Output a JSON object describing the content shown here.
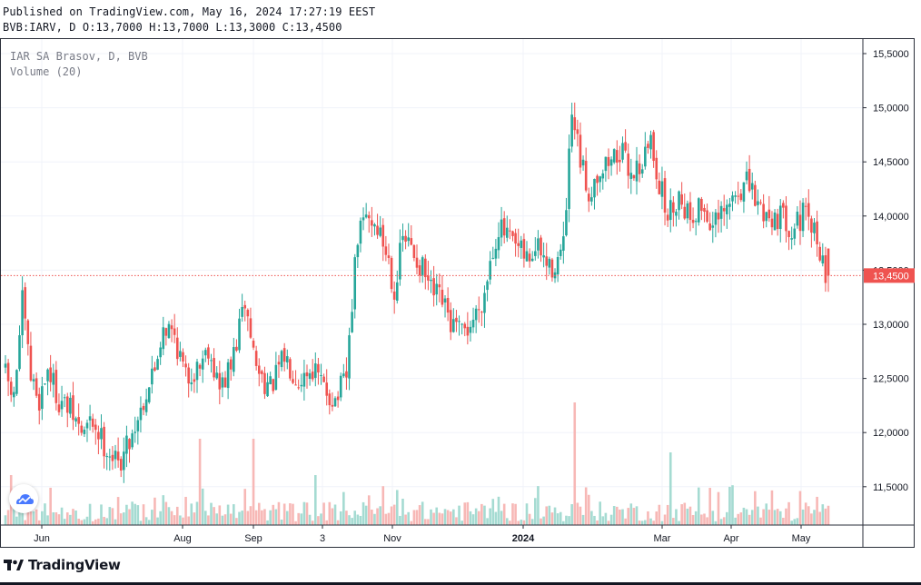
{
  "header": {
    "published": "Published on TradingView.com, May 16, 2024 17:27:19 EEST",
    "ohlc": "BVB:IARV, D O:13,7000 H:13,7000 L:13,3000 C:13,4500"
  },
  "legend": {
    "symbol": "IAR SA Brasov, D, BVB",
    "volume": "Volume (20)"
  },
  "footer": {
    "brand": "TradingView"
  },
  "colors": {
    "up": "#26a69a",
    "down": "#ef5350",
    "volume_up": "#a5dbd2",
    "volume_down": "#f7b8b6"
  },
  "chart_data": {
    "type": "candlestick",
    "symbol": "BVB:IARV",
    "interval": "D",
    "y_ticks": [
      "15,5000",
      "15,0000",
      "14,5000",
      "14,0000",
      "13,5000",
      "13,0000",
      "12,5000",
      "12,0000",
      "11,5000"
    ],
    "ylim": [
      11.1,
      15.7
    ],
    "x_ticks": [
      "Jun",
      "Aug",
      "Sep",
      "3",
      "Nov",
      "2024",
      "Mar",
      "Apr",
      "May"
    ],
    "last_price": 13.45,
    "last_price_label": "13,4500",
    "last_bar": {
      "open": 13.7,
      "high": 13.7,
      "low": 13.3,
      "close": 13.45
    },
    "grid": true,
    "price_path": [
      [
        0,
        12.6
      ],
      [
        4,
        12.3
      ],
      [
        7,
        13.2
      ],
      [
        10,
        12.5
      ],
      [
        13,
        12.3
      ],
      [
        16,
        12.6
      ],
      [
        20,
        12.3
      ],
      [
        24,
        12.2
      ],
      [
        28,
        12.0
      ],
      [
        32,
        12.1
      ],
      [
        36,
        11.9
      ],
      [
        41,
        11.7
      ],
      [
        46,
        12.0
      ],
      [
        50,
        12.3
      ],
      [
        54,
        12.6
      ],
      [
        57,
        13.0
      ],
      [
        61,
        12.9
      ],
      [
        65,
        12.5
      ],
      [
        69,
        12.6
      ],
      [
        73,
        12.8
      ],
      [
        77,
        12.4
      ],
      [
        81,
        12.6
      ],
      [
        86,
        13.2
      ],
      [
        90,
        12.6
      ],
      [
        95,
        12.4
      ],
      [
        100,
        12.7
      ],
      [
        105,
        12.5
      ],
      [
        110,
        12.6
      ],
      [
        114,
        12.4
      ],
      [
        118,
        12.3
      ],
      [
        122,
        12.5
      ],
      [
        124,
        13.2
      ],
      [
        126,
        13.8
      ],
      [
        129,
        14.0
      ],
      [
        133,
        13.9
      ],
      [
        137,
        13.6
      ],
      [
        139,
        13.3
      ],
      [
        142,
        13.8
      ],
      [
        145,
        13.7
      ],
      [
        149,
        13.5
      ],
      [
        152,
        13.3
      ],
      [
        156,
        13.2
      ],
      [
        159,
        13.0
      ],
      [
        163,
        12.9
      ],
      [
        166,
        13.0
      ],
      [
        168,
        13.1
      ],
      [
        171,
        13.3
      ],
      [
        173,
        13.6
      ],
      [
        176,
        13.9
      ],
      [
        179,
        13.8
      ],
      [
        182,
        13.7
      ],
      [
        186,
        13.6
      ],
      [
        190,
        13.7
      ],
      [
        194,
        13.5
      ],
      [
        197,
        13.6
      ],
      [
        199,
        13.7
      ],
      [
        202,
        14.9
      ],
      [
        205,
        14.5
      ],
      [
        208,
        14.2
      ],
      [
        211,
        14.4
      ],
      [
        215,
        14.5
      ],
      [
        219,
        14.6
      ],
      [
        223,
        14.4
      ],
      [
        227,
        14.5
      ],
      [
        230,
        14.7
      ],
      [
        233,
        14.3
      ],
      [
        236,
        14.0
      ],
      [
        240,
        14.2
      ],
      [
        244,
        14.0
      ],
      [
        248,
        14.1
      ],
      [
        252,
        13.9
      ],
      [
        256,
        14.0
      ],
      [
        260,
        14.2
      ],
      [
        264,
        14.3
      ],
      [
        268,
        14.1
      ],
      [
        272,
        14.0
      ],
      [
        276,
        14.0
      ],
      [
        280,
        13.9
      ],
      [
        284,
        14.0
      ],
      [
        287,
        13.9
      ],
      [
        290,
        13.7
      ],
      [
        292,
        13.45
      ]
    ],
    "volume_spikes": [
      [
        2,
        0.55
      ],
      [
        69,
        0.95
      ],
      [
        88,
        0.95
      ],
      [
        110,
        0.55
      ],
      [
        202,
        1.35
      ],
      [
        236,
        0.8
      ]
    ]
  }
}
